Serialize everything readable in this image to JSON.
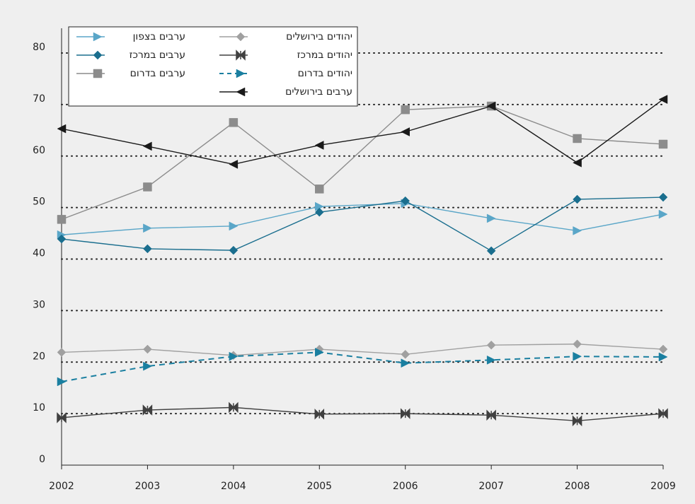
{
  "chart_data": {
    "type": "line",
    "categories": [
      "2002",
      "2003",
      "2004",
      "2005",
      "2006",
      "2007",
      "2008",
      "2009"
    ],
    "ylim": [
      0,
      80
    ],
    "yticks": [
      0,
      10,
      20,
      30,
      40,
      50,
      60,
      70,
      80
    ],
    "grid": true,
    "series": [
      {
        "name": "ערבים בצפון",
        "color": "#5aa6c8",
        "marker": "triangle-right",
        "values": [
          44.7,
          46,
          46.4,
          50.2,
          50.8,
          47.9,
          45.5,
          48.7
        ]
      },
      {
        "name": "ערבים במרכז",
        "color": "#1a6e8e",
        "marker": "diamond",
        "values": [
          43.9,
          42,
          41.7,
          49.1,
          51.3,
          41.6,
          51.6,
          52
        ]
      },
      {
        "name": "ערבים בדרום",
        "color": "#8c8c8c",
        "marker": "square",
        "values": [
          47.7,
          54,
          66.5,
          53.6,
          69,
          69.7,
          63.4,
          62.3
        ]
      },
      {
        "name": "יהודים בירושלים",
        "color": "#a0a0a0",
        "marker": "diamond",
        "values": [
          21.9,
          22.5,
          21.3,
          22.5,
          21.5,
          23.3,
          23.5,
          22.5
        ]
      },
      {
        "name": "יהודים במרכז",
        "color": "#404040",
        "marker": "bowtie",
        "values": [
          9.2,
          10.7,
          11.2,
          9.9,
          10,
          9.7,
          8.6,
          10
        ]
      },
      {
        "name": "יהודים בדרום",
        "color": "#1a7fa0",
        "marker": "triangle-right",
        "dashed": true,
        "values": [
          16.2,
          19.2,
          21.1,
          21.9,
          19.8,
          20.4,
          21.1,
          21
        ]
      },
      {
        "name": "ערבים בירושלים",
        "color": "#1a1a1a",
        "marker": "triangle-left",
        "values": [
          65.3,
          61.9,
          58.4,
          62.1,
          64.7,
          69.7,
          58.7,
          71
        ]
      }
    ]
  }
}
